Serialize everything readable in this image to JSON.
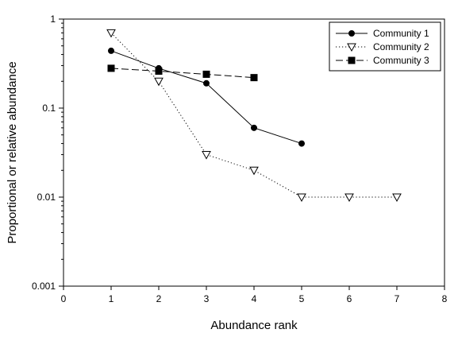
{
  "chart_data": {
    "type": "line",
    "title": "",
    "xlabel": "Abundance rank",
    "ylabel": "Proportional or relative abundance",
    "xlim": [
      0,
      8
    ],
    "ylim": [
      0.001,
      1
    ],
    "yscale": "log",
    "grid": false,
    "legend": "top-right",
    "x_ticks": [
      "0",
      "1",
      "2",
      "3",
      "4",
      "5",
      "6",
      "7",
      "8"
    ],
    "y_ticks": [
      {
        "value": 1,
        "label": "1"
      },
      {
        "value": 0.1,
        "label": "0.1"
      },
      {
        "value": 0.01,
        "label": "0.01"
      },
      {
        "value": 0.001,
        "label": "0.001"
      }
    ],
    "series": [
      {
        "name": "Community 1",
        "line": "solid",
        "marker": "circle-filled",
        "x": [
          1,
          2,
          3,
          4,
          5
        ],
        "y": [
          0.44,
          0.28,
          0.19,
          0.06,
          0.04
        ]
      },
      {
        "name": "Community 2",
        "line": "dotted",
        "marker": "triangle-down-open",
        "x": [
          1,
          2,
          3,
          4,
          5,
          6,
          7
        ],
        "y": [
          0.7,
          0.2,
          0.03,
          0.02,
          0.01,
          0.01,
          0.01
        ]
      },
      {
        "name": "Community 3",
        "line": "dashed",
        "marker": "square-filled",
        "x": [
          1,
          2,
          3,
          4
        ],
        "y": [
          0.28,
          0.26,
          0.24,
          0.22
        ]
      }
    ]
  }
}
